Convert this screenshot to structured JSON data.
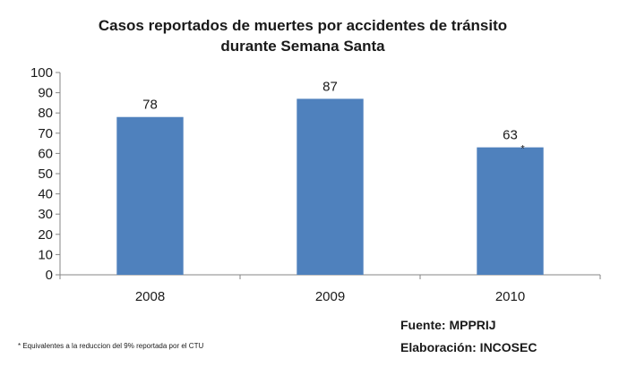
{
  "chart_data": {
    "type": "bar",
    "title_lines": [
      "Casos reportados de muertes por accidentes de tránsito",
      "durante  Semana Santa"
    ],
    "categories": [
      "2008",
      "2009",
      "2010"
    ],
    "values": [
      78,
      87,
      63
    ],
    "data_labels": [
      "78",
      "87",
      "63"
    ],
    "annotations": [
      {
        "category": "2010",
        "text": "*"
      }
    ],
    "ylim": [
      0,
      100
    ],
    "yticks": [
      0,
      10,
      20,
      30,
      40,
      50,
      60,
      70,
      80,
      90,
      100
    ],
    "xlabel": "",
    "ylabel": "",
    "grid": false,
    "legend": "none",
    "bar_color": "#4f81bd"
  },
  "source": {
    "fuente": "Fuente: MPPRIJ",
    "elaboracion": "Elaboración: INCOSEC"
  },
  "footnote": "* Equivalentes a la reduccion del 9% reportada por el CTU"
}
